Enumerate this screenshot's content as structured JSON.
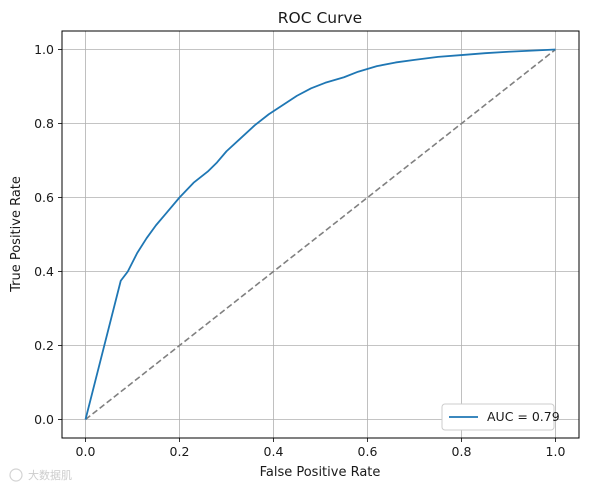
{
  "chart_data": {
    "type": "line",
    "title": "ROC Curve",
    "xlabel": "False Positive Rate",
    "ylabel": "True Positive Rate",
    "xlim": [
      -0.05,
      1.05
    ],
    "ylim": [
      -0.05,
      1.05
    ],
    "xticks": [
      "0.0",
      "0.2",
      "0.4",
      "0.6",
      "0.8",
      "1.0"
    ],
    "yticks": [
      "0.0",
      "0.2",
      "0.4",
      "0.6",
      "0.8",
      "1.0"
    ],
    "grid": true,
    "legend_position": "lower-right",
    "series": [
      {
        "name": "AUC = 0.79",
        "color": "#1f77b4",
        "style": "solid",
        "x": [
          0.0,
          0.075,
          0.09,
          0.11,
          0.13,
          0.15,
          0.17,
          0.2,
          0.23,
          0.26,
          0.28,
          0.3,
          0.33,
          0.36,
          0.39,
          0.42,
          0.45,
          0.48,
          0.51,
          0.55,
          0.58,
          0.62,
          0.66,
          0.7,
          0.75,
          0.8,
          0.85,
          0.9,
          0.95,
          1.0
        ],
        "y": [
          0.0,
          0.375,
          0.4,
          0.45,
          0.49,
          0.525,
          0.555,
          0.6,
          0.64,
          0.67,
          0.695,
          0.725,
          0.76,
          0.795,
          0.825,
          0.85,
          0.875,
          0.895,
          0.91,
          0.925,
          0.94,
          0.955,
          0.965,
          0.972,
          0.98,
          0.985,
          0.99,
          0.994,
          0.997,
          1.0
        ]
      },
      {
        "name": "",
        "color": "#808080",
        "style": "dashed",
        "x": [
          0.0,
          1.0
        ],
        "y": [
          0.0,
          1.0
        ]
      }
    ]
  },
  "watermark_text": "大数据肌"
}
